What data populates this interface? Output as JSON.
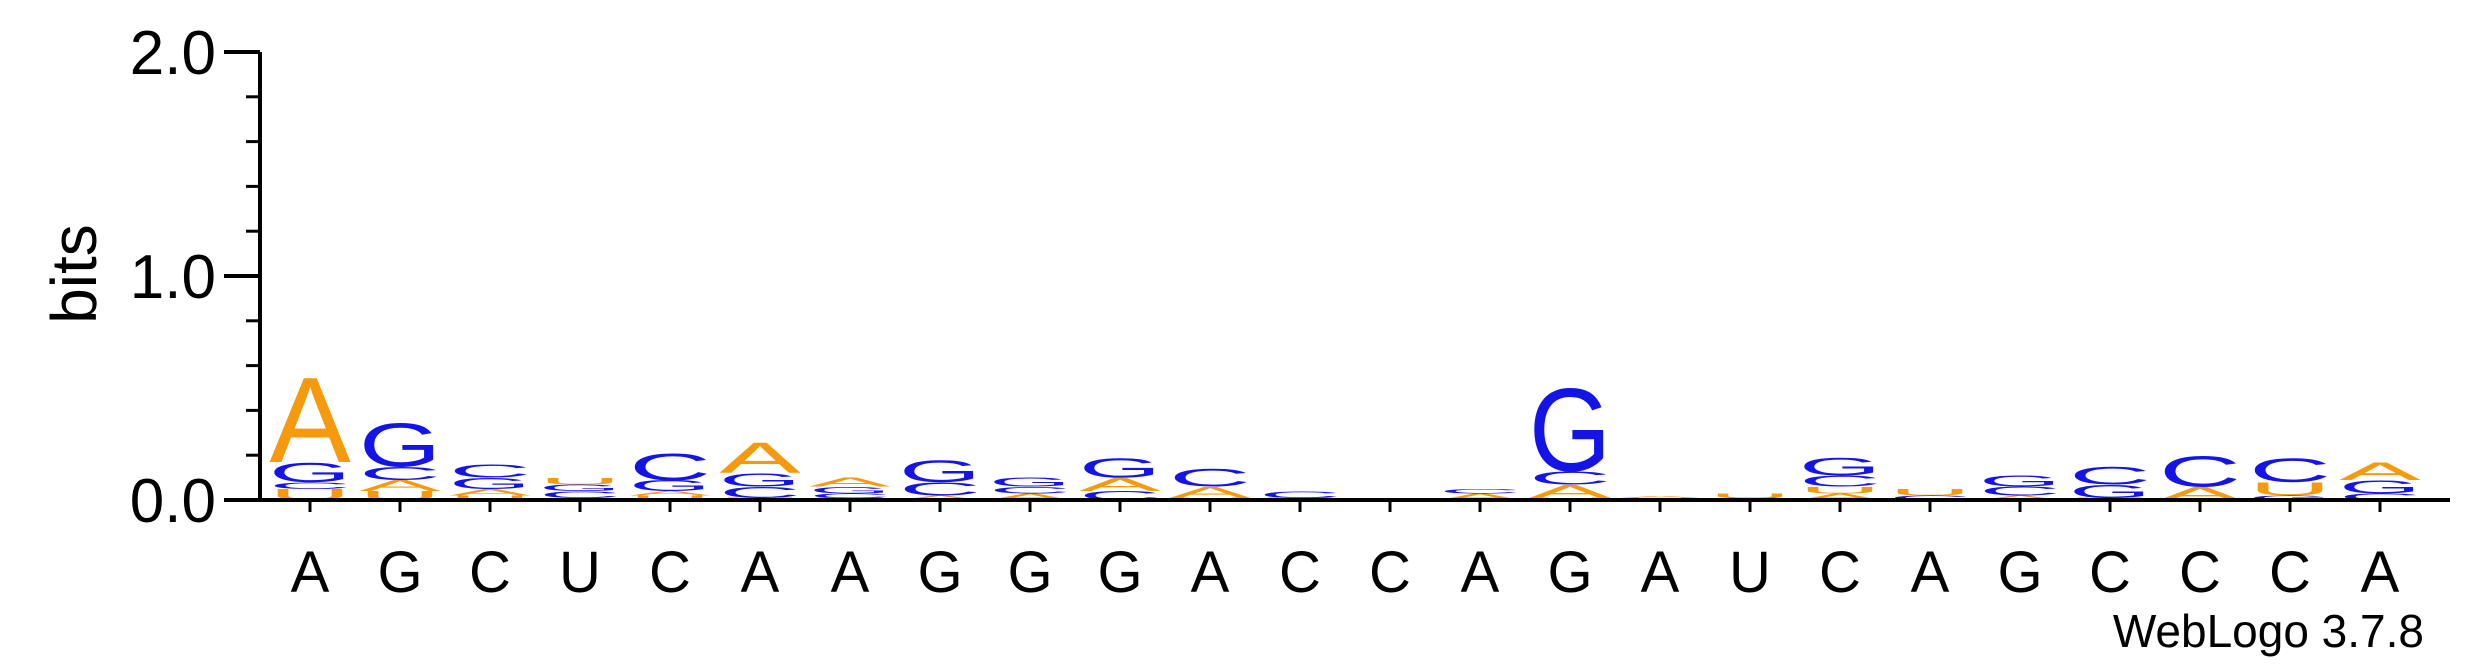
{
  "colors": {
    "A": "#f59a0c",
    "C": "#1414e6",
    "G": "#1414e6",
    "U": "#f59a0c",
    "axis": "#000000",
    "background": "#ffffff"
  },
  "chart_data": {
    "type": "sequence-logo",
    "title": "",
    "xlabel": "",
    "ylabel": "bits",
    "ylim": [
      0,
      2.0
    ],
    "yticks": [
      {
        "value": 0.0,
        "label": "0.0"
      },
      {
        "value": 1.0,
        "label": "1.0"
      },
      {
        "value": 2.0,
        "label": "2.0"
      }
    ],
    "minor_tick_step": 0.2,
    "positions": [
      {
        "label": "A",
        "stack": [
          {
            "letter": "U",
            "bits": 0.05
          },
          {
            "letter": "C",
            "bits": 0.03
          },
          {
            "letter": "G",
            "bits": 0.09
          },
          {
            "letter": "A",
            "bits": 0.39
          }
        ]
      },
      {
        "label": "G",
        "stack": [
          {
            "letter": "U",
            "bits": 0.04
          },
          {
            "letter": "A",
            "bits": 0.05
          },
          {
            "letter": "C",
            "bits": 0.06
          },
          {
            "letter": "G",
            "bits": 0.2
          }
        ]
      },
      {
        "label": "C",
        "stack": [
          {
            "letter": "U",
            "bits": 0.02
          },
          {
            "letter": "A",
            "bits": 0.03
          },
          {
            "letter": "G",
            "bits": 0.05
          },
          {
            "letter": "C",
            "bits": 0.06
          }
        ]
      },
      {
        "label": "U",
        "stack": [
          {
            "letter": "A",
            "bits": 0.01
          },
          {
            "letter": "C",
            "bits": 0.03
          },
          {
            "letter": "G",
            "bits": 0.03
          },
          {
            "letter": "U",
            "bits": 0.03
          }
        ]
      },
      {
        "label": "C",
        "stack": [
          {
            "letter": "U",
            "bits": 0.02
          },
          {
            "letter": "A",
            "bits": 0.02
          },
          {
            "letter": "G",
            "bits": 0.05
          },
          {
            "letter": "C",
            "bits": 0.12
          }
        ]
      },
      {
        "label": "A",
        "stack": [
          {
            "letter": "U",
            "bits": 0.01
          },
          {
            "letter": "C",
            "bits": 0.05
          },
          {
            "letter": "G",
            "bits": 0.06
          },
          {
            "letter": "A",
            "bits": 0.14
          }
        ]
      },
      {
        "label": "A",
        "stack": [
          {
            "letter": "U",
            "bits": 0.01
          },
          {
            "letter": "C",
            "bits": 0.02
          },
          {
            "letter": "G",
            "bits": 0.03
          },
          {
            "letter": "A",
            "bits": 0.04
          }
        ]
      },
      {
        "label": "G",
        "stack": [
          {
            "letter": "A",
            "bits": 0.02
          },
          {
            "letter": "C",
            "bits": 0.06
          },
          {
            "letter": "G",
            "bits": 0.1
          }
        ]
      },
      {
        "label": "G",
        "stack": [
          {
            "letter": "A",
            "bits": 0.03
          },
          {
            "letter": "C",
            "bits": 0.03
          },
          {
            "letter": "G",
            "bits": 0.04
          }
        ]
      },
      {
        "label": "G",
        "stack": [
          {
            "letter": "C",
            "bits": 0.04
          },
          {
            "letter": "A",
            "bits": 0.06
          },
          {
            "letter": "G",
            "bits": 0.09
          }
        ]
      },
      {
        "label": "A",
        "stack": [
          {
            "letter": "U",
            "bits": 0.01
          },
          {
            "letter": "A",
            "bits": 0.05
          },
          {
            "letter": "C",
            "bits": 0.08
          }
        ]
      },
      {
        "label": "C",
        "stack": [
          {
            "letter": "U",
            "bits": 0.01
          },
          {
            "letter": "C",
            "bits": 0.03
          }
        ]
      },
      {
        "label": "C",
        "stack": []
      },
      {
        "label": "A",
        "stack": [
          {
            "letter": "A",
            "bits": 0.03
          },
          {
            "letter": "C",
            "bits": 0.02
          }
        ]
      },
      {
        "label": "G",
        "stack": [
          {
            "letter": "U",
            "bits": 0.01
          },
          {
            "letter": "A",
            "bits": 0.06
          },
          {
            "letter": "C",
            "bits": 0.06
          },
          {
            "letter": "G",
            "bits": 0.38
          }
        ]
      },
      {
        "label": "A",
        "stack": [
          {
            "letter": "U",
            "bits": 0.01
          },
          {
            "letter": "A",
            "bits": 0.01
          }
        ]
      },
      {
        "label": "U",
        "stack": [
          {
            "letter": "C",
            "bits": 0.01
          },
          {
            "letter": "U",
            "bits": 0.02
          }
        ]
      },
      {
        "label": "C",
        "stack": [
          {
            "letter": "A",
            "bits": 0.03
          },
          {
            "letter": "U",
            "bits": 0.03
          },
          {
            "letter": "C",
            "bits": 0.05
          },
          {
            "letter": "G",
            "bits": 0.08
          }
        ]
      },
      {
        "label": "A",
        "stack": [
          {
            "letter": "C",
            "bits": 0.02
          },
          {
            "letter": "U",
            "bits": 0.03
          }
        ]
      },
      {
        "label": "G",
        "stack": [
          {
            "letter": "A",
            "bits": 0.02
          },
          {
            "letter": "C",
            "bits": 0.04
          },
          {
            "letter": "G",
            "bits": 0.05
          }
        ]
      },
      {
        "label": "C",
        "stack": [
          {
            "letter": "U",
            "bits": 0.01
          },
          {
            "letter": "G",
            "bits": 0.06
          },
          {
            "letter": "C",
            "bits": 0.08
          }
        ]
      },
      {
        "label": "C",
        "stack": [
          {
            "letter": "A",
            "bits": 0.06
          },
          {
            "letter": "C",
            "bits": 0.14
          }
        ]
      },
      {
        "label": "C",
        "stack": [
          {
            "letter": "G",
            "bits": 0.02
          },
          {
            "letter": "U",
            "bits": 0.06
          },
          {
            "letter": "C",
            "bits": 0.11
          }
        ]
      },
      {
        "label": "A",
        "stack": [
          {
            "letter": "C",
            "bits": 0.03
          },
          {
            "letter": "G",
            "bits": 0.06
          },
          {
            "letter": "A",
            "bits": 0.08
          }
        ]
      }
    ],
    "footer": "WebLogo 3.7.8"
  }
}
